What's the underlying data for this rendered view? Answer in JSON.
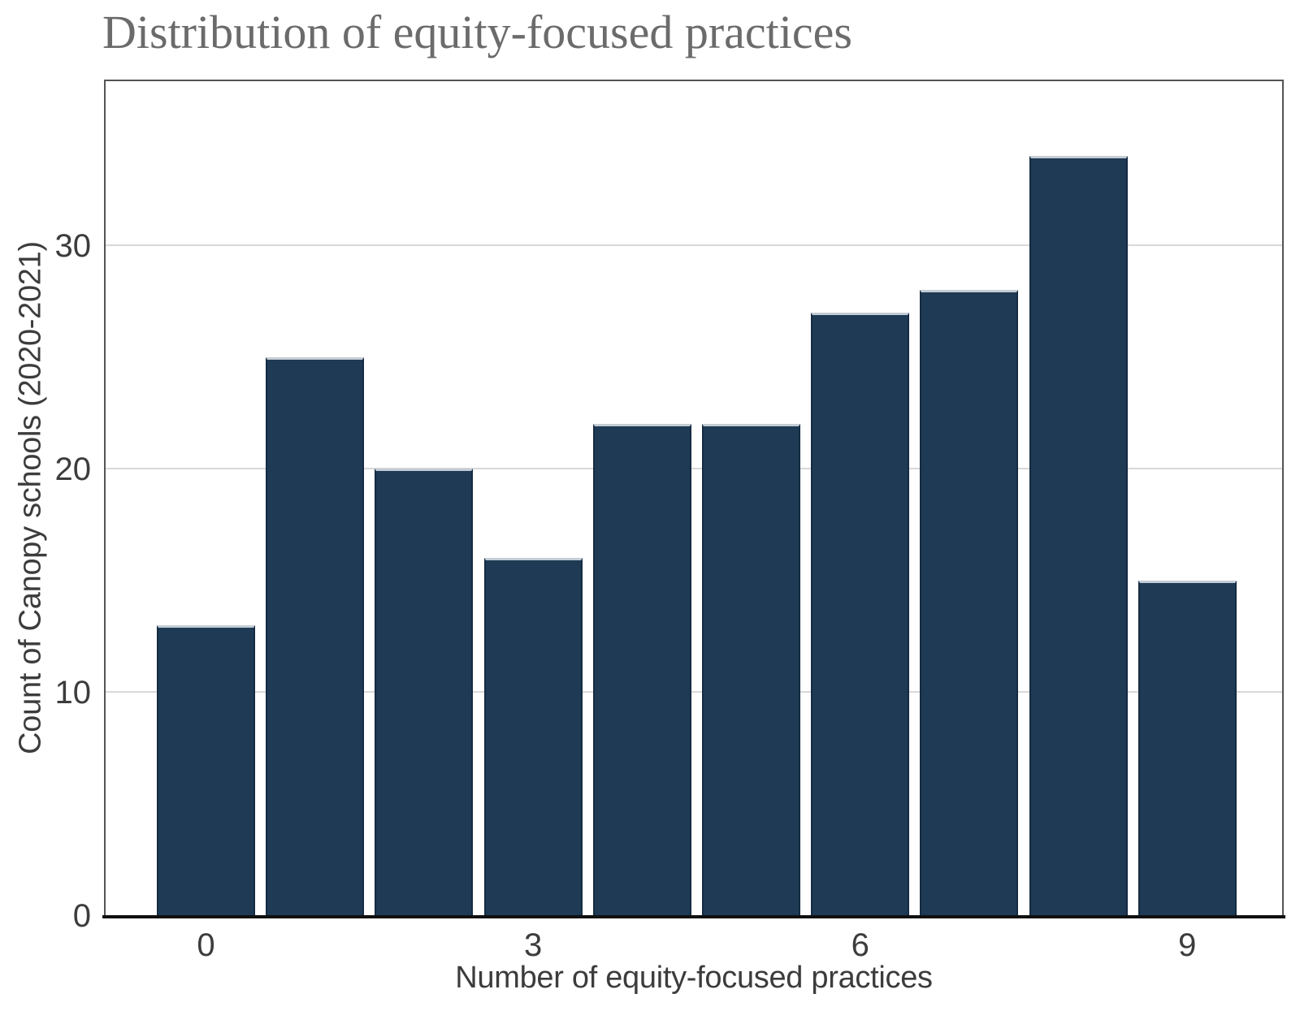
{
  "chart_data": {
    "type": "bar",
    "title": "Distribution of equity-focused practices",
    "xlabel": "Number of equity-focused practices",
    "ylabel": "Count of Canopy schools (2020-2021)",
    "categories": [
      0,
      1,
      2,
      3,
      4,
      5,
      6,
      7,
      8,
      9
    ],
    "values": [
      13,
      25,
      20,
      16,
      22,
      22,
      27,
      28,
      34,
      15
    ],
    "x_tick_labels": [
      "0",
      "3",
      "6",
      "9"
    ],
    "x_tick_positions": [
      0,
      3,
      6,
      9
    ],
    "y_tick_labels": [
      "0",
      "10",
      "20",
      "30"
    ],
    "y_tick_values": [
      0,
      10,
      20,
      30
    ],
    "ylim": [
      0,
      37.5
    ],
    "grid": "horizontal-only",
    "legend": "none",
    "colors": {
      "bar_fill": "#1e3a55",
      "bar_top_edge": "#c4ccd4",
      "bar_side_edge": "#152b42",
      "gridline": "#d8d8d8",
      "panel_border": "#545454",
      "axis_line": "#101010",
      "title_text": "#6b6b6b",
      "axis_text": "#3c3c3c",
      "background": "#ffffff"
    }
  }
}
